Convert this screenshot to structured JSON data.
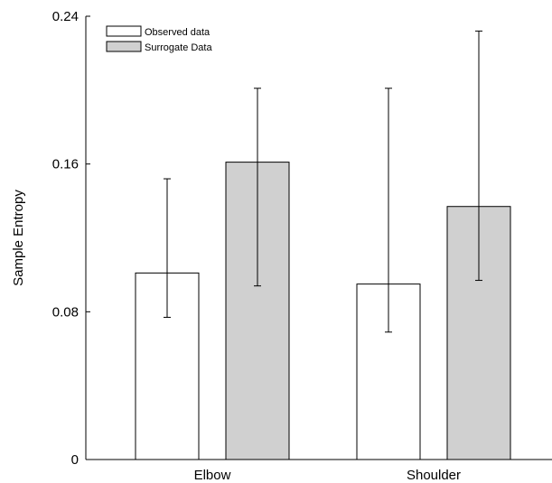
{
  "chart_data": {
    "type": "bar",
    "categories": [
      "Elbow",
      "Shoulder"
    ],
    "series": [
      {
        "name": "Observed data",
        "values": [
          0.101,
          0.095
        ],
        "error_low": [
          0.077,
          0.069
        ],
        "error_high": [
          0.152,
          0.201
        ],
        "color": "#ffffff"
      },
      {
        "name": "Surrogate Data",
        "values": [
          0.161,
          0.137
        ],
        "error_low": [
          0.094,
          0.097
        ],
        "error_high": [
          0.201,
          0.232
        ],
        "color": "#d0d0d0"
      }
    ],
    "title": "",
    "xlabel": "",
    "ylabel": "Sample Entropy",
    "ylim": [
      0,
      0.24
    ],
    "yticks": [
      0,
      0.08,
      0.16,
      0.24
    ],
    "ytick_labels": [
      "0",
      "0.08",
      "0.16",
      "0.24"
    ],
    "grid": false,
    "legend_position": "top-left"
  }
}
